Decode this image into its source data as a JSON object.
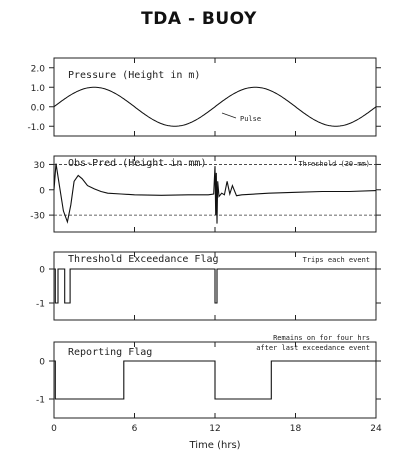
{
  "title": "TDA - BUOY",
  "xlabel": "Time (hrs)",
  "chart_data": [
    {
      "type": "line",
      "label": "Pressure (Height in m)",
      "annotation": "Pulse",
      "x_range": [
        0,
        24
      ],
      "ylim": [
        -1.5,
        2.5
      ],
      "yticks": [
        -1.0,
        0.0,
        1.0,
        2.0
      ],
      "ytick_labels": [
        "-1.0",
        "0.0",
        "1.0",
        "2.0"
      ],
      "series": [
        {
          "x": [
            0,
            1,
            2,
            3,
            4,
            5,
            6,
            7,
            8,
            9,
            10,
            11,
            12,
            13,
            14,
            15,
            16,
            17,
            18,
            19,
            20,
            21,
            22,
            23,
            24
          ],
          "values": [
            0.0,
            0.5,
            0.87,
            1.0,
            0.87,
            0.5,
            0.0,
            -0.5,
            -0.87,
            -1.0,
            -0.87,
            -0.5,
            0.0,
            0.5,
            0.87,
            1.0,
            0.87,
            0.5,
            0.0,
            -0.5,
            -0.87,
            -1.0,
            -0.87,
            -0.5,
            0.0
          ]
        }
      ]
    },
    {
      "type": "line",
      "label": "Obs-Pred (Height in mm)",
      "annotation": "Threshold (30 mm)",
      "threshold": [
        30,
        -30
      ],
      "x_range": [
        0,
        24
      ],
      "ylim": [
        -50,
        40
      ],
      "yticks": [
        -30,
        0,
        30
      ],
      "ytick_labels": [
        "-30",
        "0",
        "30"
      ],
      "series": [
        {
          "x": [
            0,
            0.15,
            0.4,
            0.7,
            1.0,
            1.25,
            1.5,
            1.8,
            2.1,
            2.5,
            3.0,
            3.5,
            4.0,
            5.0,
            6.0,
            8.0,
            10.0,
            11.5,
            11.9,
            12.0,
            12.05,
            12.1,
            12.15,
            12.2,
            12.3,
            12.5,
            12.7,
            12.9,
            13.1,
            13.3,
            13.6,
            14.0,
            16.0,
            18.0,
            20.0,
            22.0,
            24.0
          ],
          "values": [
            0,
            31,
            5,
            -25,
            -38,
            -18,
            10,
            17,
            13,
            5,
            1,
            -2,
            -4,
            -5,
            -6,
            -6.5,
            -6,
            -6,
            -5,
            28,
            -30,
            20,
            -40,
            10,
            -8,
            -4,
            -6,
            10,
            -5,
            5,
            -7,
            -6,
            -4,
            -3,
            -2,
            -2,
            -1
          ]
        }
      ]
    },
    {
      "type": "line",
      "label": "Threshold Exceedance Flag",
      "annotation": "Trips each event",
      "x_range": [
        0,
        24
      ],
      "ylim": [
        -1.5,
        0.5
      ],
      "yticks": [
        -1,
        0
      ],
      "ytick_labels": [
        "-1",
        "0"
      ],
      "series": [
        {
          "x": [
            0,
            0.1,
            0.1,
            0.3,
            0.3,
            0.8,
            0.8,
            1.2,
            1.2,
            12.0,
            12.0,
            12.15,
            12.15,
            24
          ],
          "values": [
            0,
            0,
            -1,
            -1,
            0,
            0,
            -1,
            -1,
            0,
            0,
            -1,
            -1,
            0,
            0
          ]
        }
      ]
    },
    {
      "type": "line",
      "label": "Reporting Flag",
      "annotation": "Remains on for four hrs after last exceedance event",
      "x_range": [
        0,
        24
      ],
      "xticks": [
        0,
        6,
        12,
        18,
        24
      ],
      "xtick_labels": [
        "0",
        "6",
        "12",
        "18",
        "24"
      ],
      "ylim": [
        -1.5,
        0.5
      ],
      "yticks": [
        -1,
        0
      ],
      "ytick_labels": [
        "-1",
        "0"
      ],
      "series": [
        {
          "x": [
            0,
            0.1,
            0.1,
            5.2,
            5.2,
            12.0,
            12.0,
            16.2,
            16.2,
            24
          ],
          "values": [
            0,
            0,
            -1,
            -1,
            0,
            0,
            -1,
            -1,
            0,
            0
          ]
        }
      ]
    }
  ]
}
